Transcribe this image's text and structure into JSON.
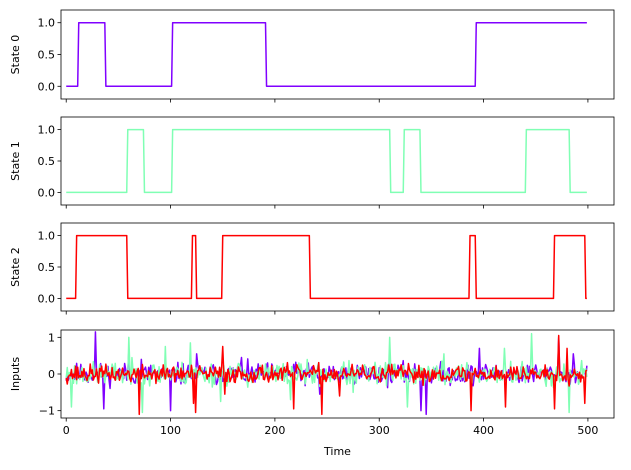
{
  "chart_data": [
    {
      "type": "line",
      "ylabel": "State 0",
      "xlim": [
        -5,
        525
      ],
      "ylim": [
        -0.2,
        1.2
      ],
      "yticks": [
        0.0,
        0.5,
        1.0
      ],
      "ytick_labels": [
        "0.0",
        "0.5",
        "1.0"
      ],
      "show_xtick_labels": false,
      "series": [
        {
          "color": "#8000ff",
          "x": [
            0,
            11,
            12,
            37,
            38,
            101,
            102,
            191,
            192,
            392,
            393,
            499
          ],
          "y": [
            0,
            0,
            1,
            1,
            0,
            0,
            1,
            1,
            0,
            0,
            1,
            1
          ]
        }
      ]
    },
    {
      "type": "line",
      "ylabel": "State 1",
      "xlim": [
        -5,
        525
      ],
      "ylim": [
        -0.2,
        1.2
      ],
      "yticks": [
        0.0,
        0.5,
        1.0
      ],
      "ytick_labels": [
        "0.0",
        "0.5",
        "1.0"
      ],
      "show_xtick_labels": false,
      "series": [
        {
          "color": "#80ffb4",
          "x": [
            0,
            58,
            59,
            74,
            75,
            101,
            102,
            310,
            311,
            323,
            324,
            339,
            340,
            440,
            441,
            482,
            483,
            499
          ],
          "y": [
            0,
            0,
            1,
            1,
            0,
            0,
            1,
            1,
            0,
            0,
            1,
            1,
            0,
            0,
            1,
            1,
            0,
            0
          ]
        }
      ]
    },
    {
      "type": "line",
      "ylabel": "State 2",
      "xlim": [
        -5,
        525
      ],
      "ylim": [
        -0.2,
        1.2
      ],
      "yticks": [
        0.0,
        0.5,
        1.0
      ],
      "ytick_labels": [
        "0.0",
        "0.5",
        "1.0"
      ],
      "show_xtick_labels": false,
      "series": [
        {
          "color": "#ff0000",
          "x": [
            0,
            9,
            10,
            58,
            59,
            120,
            121,
            124,
            125,
            149,
            150,
            233,
            234,
            386,
            387,
            392,
            393,
            467,
            468,
            497,
            498,
            499
          ],
          "y": [
            0,
            0,
            1,
            1,
            0,
            0,
            1,
            1,
            0,
            0,
            1,
            1,
            0,
            0,
            1,
            1,
            0,
            0,
            1,
            1,
            0,
            0
          ]
        }
      ]
    },
    {
      "type": "line",
      "ylabel": "Inputs",
      "xlabel": "Time",
      "xlim": [
        -5,
        525
      ],
      "ylim": [
        -1.2,
        1.2
      ],
      "yticks": [
        -1,
        0,
        1
      ],
      "ytick_labels": [
        "−1",
        "0",
        "1"
      ],
      "xticks": [
        0,
        100,
        200,
        300,
        400,
        500
      ],
      "xtick_labels": [
        "0",
        "100",
        "200",
        "300",
        "400",
        "500"
      ],
      "show_xtick_labels": true,
      "noise": true,
      "series": [
        {
          "color": "#8000ff",
          "amplitude": 0.18,
          "seed": 11,
          "spikes": [
            [
              28,
              1.15
            ],
            [
              36,
              -0.95
            ],
            [
              60,
              0.6
            ],
            [
              72,
              0.4
            ],
            [
              100,
              -1.0
            ],
            [
              125,
              0.55
            ],
            [
              168,
              0.45
            ],
            [
              243,
              -0.55
            ],
            [
              340,
              -1.0
            ],
            [
              345,
              -1.1
            ],
            [
              396,
              0.7
            ],
            [
              472,
              1.0
            ],
            [
              486,
              0.55
            ]
          ]
        },
        {
          "color": "#80ffb4",
          "amplitude": 0.2,
          "seed": 23,
          "spikes": [
            [
              5,
              -0.9
            ],
            [
              60,
              1.0
            ],
            [
              73,
              -1.05
            ],
            [
              95,
              0.75
            ],
            [
              119,
              0.85
            ],
            [
              148,
              -0.75
            ],
            [
              215,
              -0.7
            ],
            [
              275,
              -0.5
            ],
            [
              310,
              1.0
            ],
            [
              327,
              -0.9
            ],
            [
              362,
              0.55
            ],
            [
              420,
              0.7
            ],
            [
              446,
              1.1
            ],
            [
              482,
              -1.05
            ]
          ]
        },
        {
          "color": "#ff0000",
          "amplitude": 0.15,
          "seed": 37,
          "spikes": [
            [
              70,
              -1.1
            ],
            [
              122,
              -0.8
            ],
            [
              124,
              -1.05
            ],
            [
              150,
              0.75
            ],
            [
              152,
              -0.55
            ],
            [
              218,
              -0.95
            ],
            [
              245,
              -1.1
            ],
            [
              262,
              -0.6
            ],
            [
              388,
              -1.0
            ],
            [
              421,
              -0.9
            ],
            [
              468,
              -0.95
            ],
            [
              472,
              1.05
            ],
            [
              480,
              0.7
            ],
            [
              497,
              -0.8
            ]
          ]
        }
      ]
    }
  ]
}
